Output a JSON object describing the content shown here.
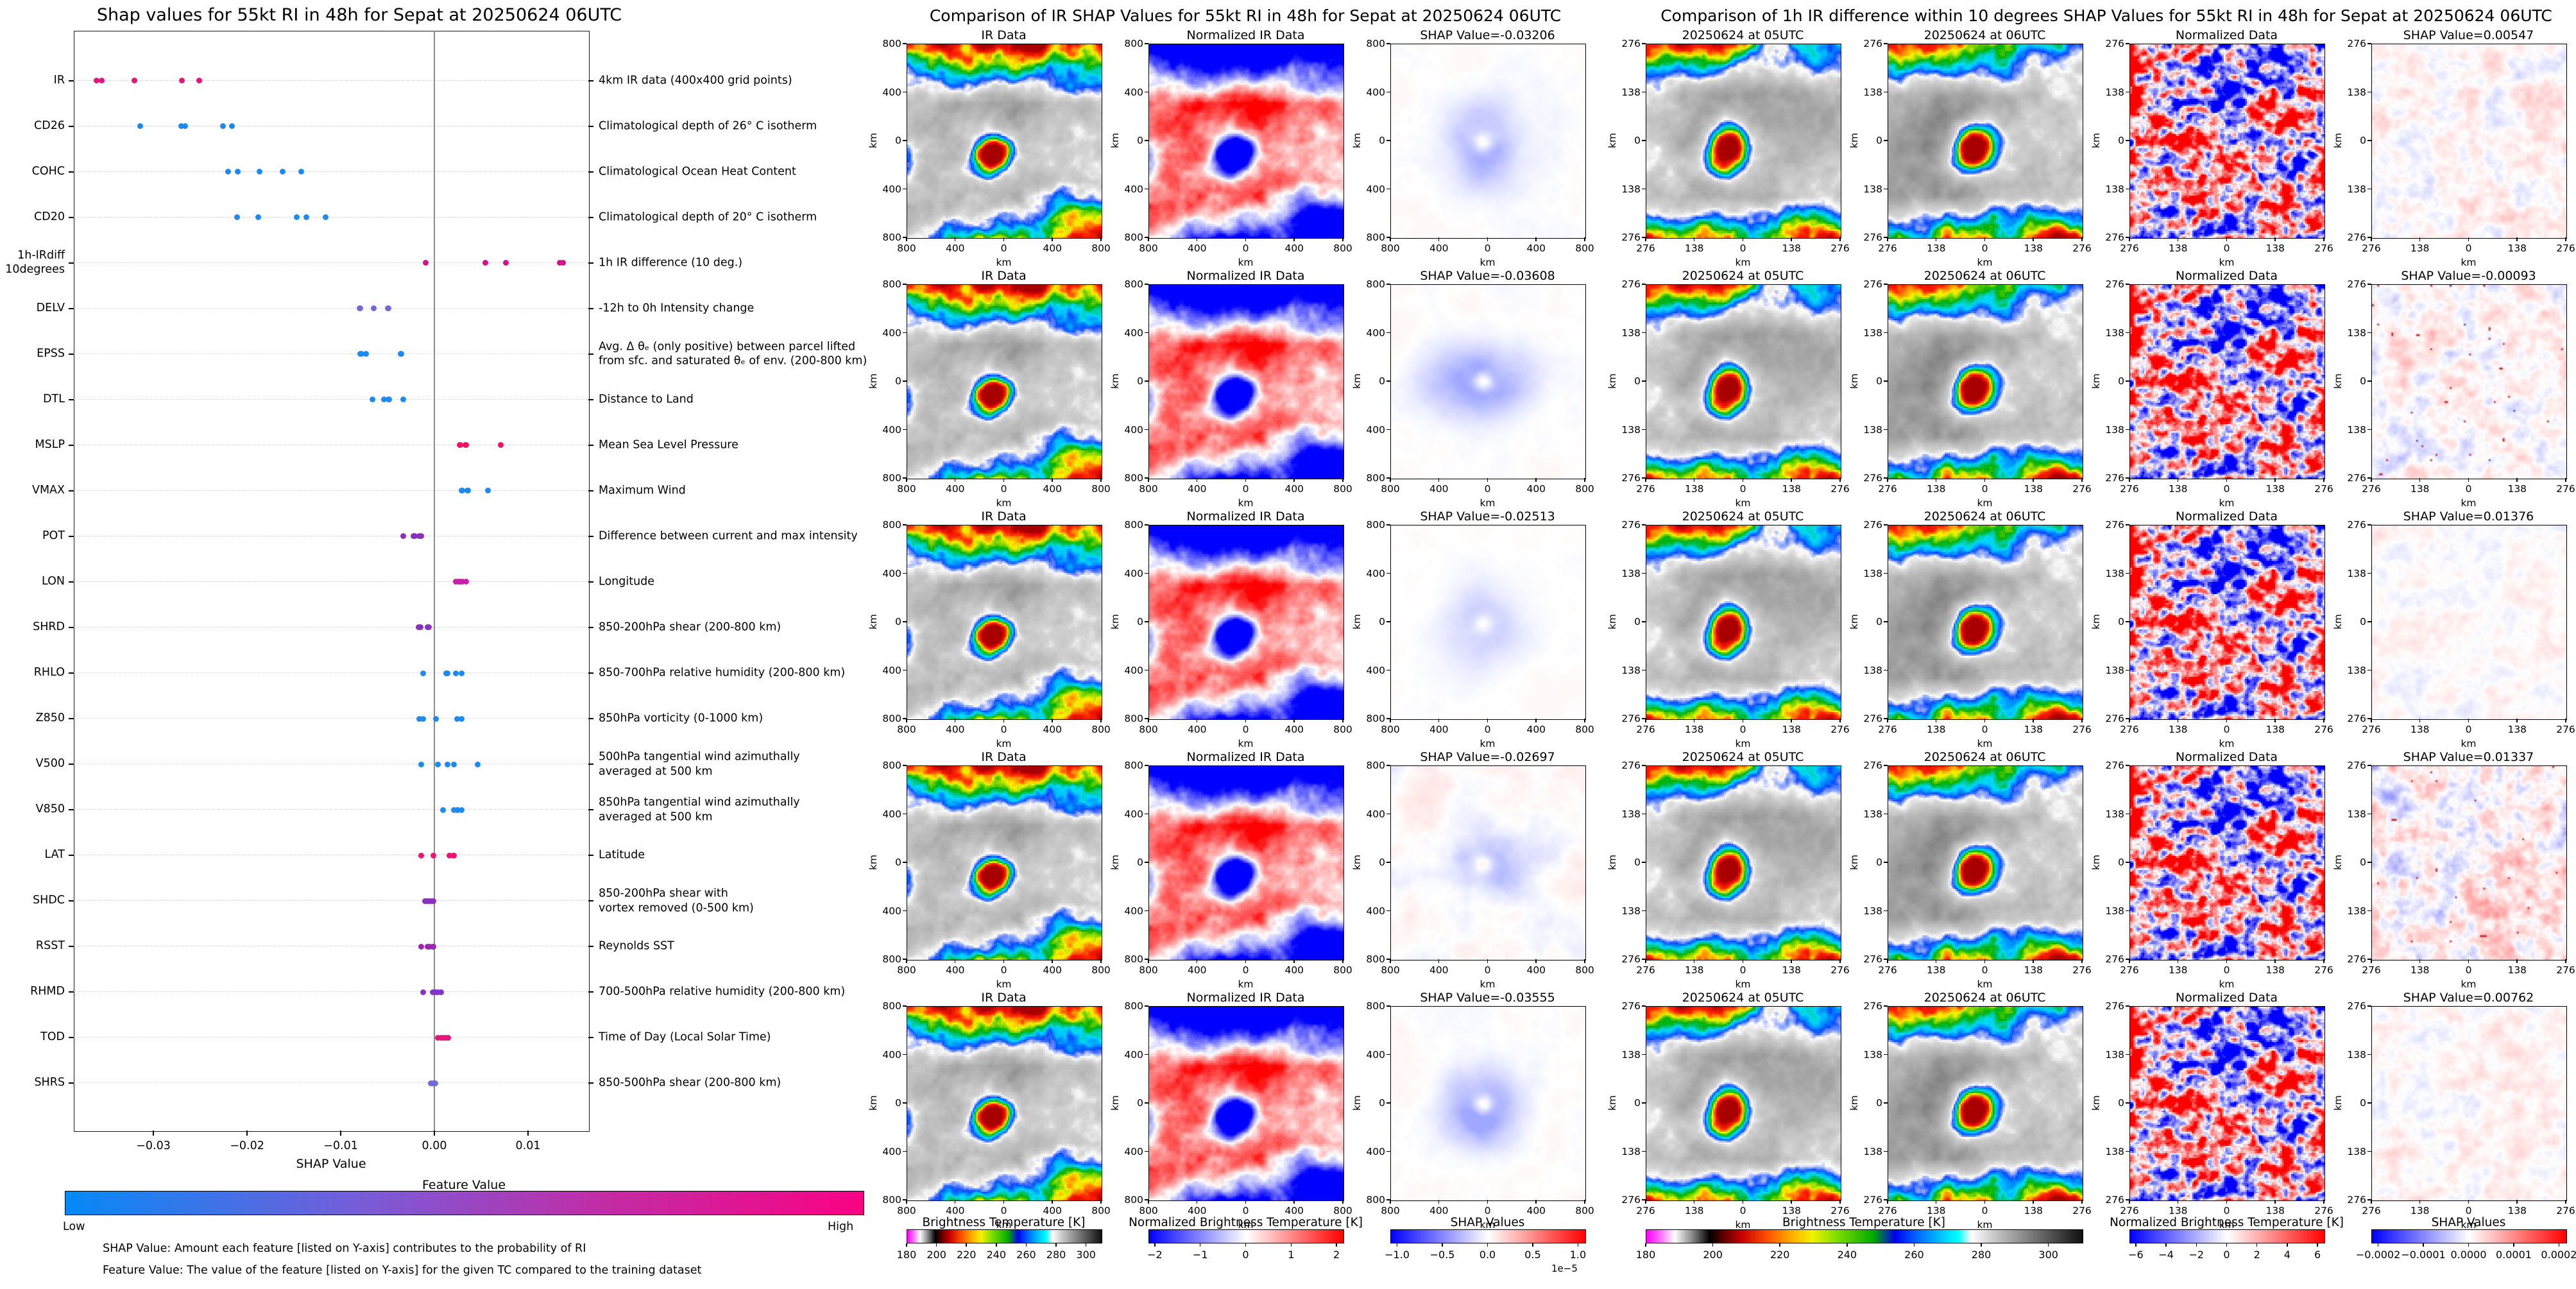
{
  "left_panel": {
    "title": "Shap values for 55kt RI in 48h for Sepat at 20250624 06UTC",
    "xlabel": "SHAP Value",
    "x_tick_labels": [
      "−0.03",
      "−0.02",
      "−0.01",
      "0.00",
      "0.01"
    ],
    "colorbar": {
      "title": "Feature Value",
      "low_label": "Low",
      "high_label": "High",
      "low_color": "#0589f8",
      "high_color": "#fa0283"
    },
    "footnote1": "SHAP Value: Amount each feature [listed on Y-axis] contributes to the probability of RI",
    "footnote2": "Feature Value: The value of the feature [listed on Y-axis] for the given TC compared to the training dataset",
    "features": [
      {
        "code": "IR",
        "desc": "4km IR data (400x400 grid points)"
      },
      {
        "code": "CD26",
        "desc": "Climatological depth of 26° C isotherm"
      },
      {
        "code": "COHC",
        "desc": "Climatological Ocean Heat Content"
      },
      {
        "code": "CD20",
        "desc": "Climatological depth of 20° C isotherm"
      },
      {
        "code": "1h-IRdiff\n10degrees",
        "desc": "1h IR difference (10 deg.)"
      },
      {
        "code": "DELV",
        "desc": "-12h to 0h Intensity change"
      },
      {
        "code": "EPSS",
        "desc": "Avg. Δ θₑ (only positive) between parcel lifted\nfrom sfc. and saturated θₑ of env. (200-800 km)"
      },
      {
        "code": "DTL",
        "desc": "Distance to Land"
      },
      {
        "code": "MSLP",
        "desc": "Mean Sea Level Pressure"
      },
      {
        "code": "VMAX",
        "desc": "Maximum Wind"
      },
      {
        "code": "POT",
        "desc": "Difference between current and max intensity"
      },
      {
        "code": "LON",
        "desc": "Longitude"
      },
      {
        "code": "SHRD",
        "desc": "850-200hPa shear (200-800 km)"
      },
      {
        "code": "RHLO",
        "desc": "850-700hPa relative humidity (200-800 km)"
      },
      {
        "code": "Z850",
        "desc": "850hPa vorticity (0-1000 km)"
      },
      {
        "code": "V500",
        "desc": "500hPa tangential wind azimuthally\naveraged at 500 km"
      },
      {
        "code": "V850",
        "desc": "850hPa tangential wind azimuthally\naveraged at 500 km"
      },
      {
        "code": "LAT",
        "desc": "Latitude"
      },
      {
        "code": "SHDC",
        "desc": "850-200hPa shear with\nvortex removed (0-500 km)"
      },
      {
        "code": "RSST",
        "desc": "Reynolds SST"
      },
      {
        "code": "RHMD",
        "desc": "700-500hPa relative humidity (200-800 km)"
      },
      {
        "code": "TOD",
        "desc": "Time of Day (Local Solar Time)"
      },
      {
        "code": "SHRS",
        "desc": "850-500hPa shear (200-800 km)"
      }
    ]
  },
  "middle_panel": {
    "title": "Comparison of IR SHAP Values for 55kt RI in 48h for Sepat at 20250624 06UTC",
    "col_titles": [
      "IR Data",
      "Normalized IR Data"
    ],
    "rows": [
      {
        "shap_label": "SHAP Value=-0.03206"
      },
      {
        "shap_label": "SHAP Value=-0.03608"
      },
      {
        "shap_label": "SHAP Value=-0.02513"
      },
      {
        "shap_label": "SHAP Value=-0.02697"
      },
      {
        "shap_label": "SHAP Value=-0.03555"
      }
    ],
    "axis_tick_labels": [
      "800",
      "400",
      "0",
      "400",
      "800"
    ],
    "axis_unit": "km",
    "colorbars": [
      {
        "title": "Brightness Temperature [K]",
        "ticks": [
          "180",
          "200",
          "220",
          "240",
          "260",
          "280",
          "300"
        ],
        "style": "grad-ir",
        "range": [
          180,
          310
        ],
        "values": [
          180,
          200,
          220,
          240,
          260,
          280,
          300
        ]
      },
      {
        "title": "Normalized Brightness Temperature [K]",
        "ticks": [
          "−2",
          "−1",
          "0",
          "1",
          "2"
        ],
        "style": "grad-bwr",
        "range": [
          -2.14,
          2.14
        ],
        "values": [
          -2,
          -1,
          0,
          1,
          2
        ]
      },
      {
        "title": "SHAP Values",
        "ticks": [
          "−1.0",
          "−0.5",
          "0.0",
          "0.5",
          "1.0"
        ],
        "style": "grad-bwr",
        "range": [
          -1.075,
          1.075
        ],
        "values": [
          -1,
          -0.5,
          0,
          0.5,
          1
        ],
        "exponent": "1e−5"
      }
    ]
  },
  "right_panel": {
    "title": "Comparison of 1h IR difference within 10 degrees SHAP Values for 55kt RI in 48h for Sepat at 20250624 06UTC",
    "col_titles": [
      "20250624 at 05UTC",
      "20250624 at 06UTC",
      "Normalized Data"
    ],
    "rows": [
      {
        "shap_label": "SHAP Value=0.00547"
      },
      {
        "shap_label": "SHAP Value=-0.00093"
      },
      {
        "shap_label": "SHAP Value=0.01376"
      },
      {
        "shap_label": "SHAP Value=0.01337"
      },
      {
        "shap_label": "SHAP Value=0.00762"
      }
    ],
    "axis_tick_labels": [
      "276",
      "138",
      "0",
      "138",
      "276"
    ],
    "axis_unit": "km",
    "colorbars": [
      {
        "title": "Brightness Temperature [K]",
        "ticks": [
          "180",
          "200",
          "220",
          "240",
          "260",
          "280",
          "300"
        ],
        "style": "grad-ir",
        "range": [
          180,
          310
        ],
        "values": [
          180,
          200,
          220,
          240,
          260,
          280,
          300
        ]
      },
      {
        "title": "Normalized Brightness Temperature [K]",
        "ticks": [
          "−6",
          "−4",
          "−2",
          "0",
          "2",
          "4",
          "6"
        ],
        "style": "grad-bwr",
        "range": [
          -6.42,
          6.42
        ],
        "values": [
          -6,
          -4,
          -2,
          0,
          2,
          4,
          6
        ]
      },
      {
        "title": "SHAP Values",
        "ticks": [
          "−0.0002",
          "−0.0001",
          "0.0000",
          "0.0001",
          "0.0002"
        ],
        "style": "grad-bwr",
        "range": [
          -0.000215,
          0.000215
        ],
        "values": [
          -0.0002,
          -0.0001,
          0,
          0.0001,
          0.0002
        ]
      }
    ]
  },
  "chart_data": [
    {
      "type": "scatter",
      "subtype": "shap-beeswarm",
      "title": "Shap values for 55kt RI in 48h for Sepat at 20250624 06UTC",
      "xlabel": "SHAP Value",
      "xlim": [
        -0.0385,
        0.01644
      ],
      "x_ticks": [
        -0.03,
        -0.02,
        -0.01,
        0.0,
        0.01
      ],
      "legend": "Feature Value colorbar: Low (blue) to High (pink)",
      "series": [
        {
          "name": "IR",
          "color": "#e0187c",
          "x": [
            -0.03608,
            -0.03555,
            -0.03206,
            -0.02697,
            -0.02513
          ]
        },
        {
          "name": "CD26",
          "color": "#1e8af0",
          "x": [
            -0.0314,
            -0.027,
            -0.0266,
            -0.0226,
            -0.0216
          ]
        },
        {
          "name": "COHC",
          "color": "#1e8af0",
          "x": [
            -0.022,
            -0.021,
            -0.0187,
            -0.0162,
            -0.0142
          ]
        },
        {
          "name": "CD20",
          "color": "#1e8af0",
          "x": [
            -0.0211,
            -0.0188,
            -0.0147,
            -0.0137,
            -0.0116
          ]
        },
        {
          "name": "1h-IRdiff 10degrees",
          "color": "#d2148c",
          "x": [
            -0.00093,
            0.00547,
            0.00762,
            0.01337,
            0.01376
          ]
        },
        {
          "name": "DELV",
          "color": "#6f6ad8",
          "x": [
            -0.008,
            -0.0079,
            -0.0065,
            -0.005,
            -0.0049
          ]
        },
        {
          "name": "EPSS",
          "color": "#1e8af0",
          "x": [
            -0.0079,
            -0.0078,
            -0.0073,
            -0.0036,
            -0.0035
          ]
        },
        {
          "name": "DTL",
          "color": "#1e8af0",
          "x": [
            -0.0066,
            -0.0054,
            -0.0049,
            -0.0048,
            -0.0033
          ]
        },
        {
          "name": "MSLP",
          "color": "#ee1460",
          "x": [
            0.0027,
            0.0028,
            0.0033,
            0.0034,
            0.0071
          ]
        },
        {
          "name": "VMAX",
          "color": "#1e8af0",
          "x": [
            0.0029,
            0.003,
            0.0035,
            0.0036,
            0.0057
          ]
        },
        {
          "name": "POT",
          "color": "#8a2fbe",
          "x": [
            -0.0033,
            -0.0022,
            -0.0021,
            -0.0016,
            -0.0014
          ]
        },
        {
          "name": "LON",
          "color": "#c521ab",
          "x": [
            0.0023,
            0.0026,
            0.0028,
            0.003,
            0.0034
          ]
        },
        {
          "name": "SHRD",
          "color": "#8a2fbe",
          "x": [
            -0.0017,
            -0.0016,
            -0.0015,
            -0.0007,
            -0.0006
          ]
        },
        {
          "name": "RHLO",
          "color": "#1e8af0",
          "x": [
            -0.0012,
            0.0013,
            0.0014,
            0.0023,
            0.0029
          ]
        },
        {
          "name": "Z850",
          "color": "#1e8af0",
          "x": [
            -0.0016,
            -0.0012,
            0.0002,
            0.0024,
            0.0029
          ]
        },
        {
          "name": "V500",
          "color": "#1e8af0",
          "x": [
            -0.0014,
            0.0004,
            0.0014,
            0.0021,
            0.0046
          ]
        },
        {
          "name": "V850",
          "color": "#1e8af0",
          "x": [
            0.0009,
            0.0021,
            0.0024,
            0.0025,
            0.0029
          ]
        },
        {
          "name": "LAT",
          "color": "#ee1470",
          "x": [
            -0.0014,
            -0.0001,
            0.0016,
            0.002,
            0.0021
          ]
        },
        {
          "name": "SHDC",
          "color": "#8a2fbe",
          "x": [
            -0.001,
            -0.0008,
            -0.0006,
            -0.0003,
            -0.0001
          ]
        },
        {
          "name": "RSST",
          "color": "#9c27b0",
          "x": [
            -0.0014,
            -0.0007,
            -0.0005,
            -0.0002,
            -0.0001
          ]
        },
        {
          "name": "RHMD",
          "color": "#8336c8",
          "x": [
            -0.0012,
            -0.0002,
            0.0001,
            0.0004,
            0.0007
          ]
        },
        {
          "name": "TOD",
          "color": "#e0187c",
          "x": [
            0.0004,
            0.0007,
            0.001,
            0.0012,
            0.0015
          ]
        },
        {
          "name": "SHRS",
          "color": "#6f6ad8",
          "x": [
            -0.0004,
            -0.0002,
            -0.0001,
            0.0,
            0.0001
          ]
        }
      ]
    },
    {
      "type": "heatmap",
      "title": "Comparison of IR SHAP Values for 55kt RI in 48h for Sepat at 20250624 06UTC",
      "columns": [
        "IR Data",
        "Normalized IR Data",
        "SHAP Value map"
      ],
      "row_shap_values": [
        -0.03206,
        -0.03608,
        -0.02513,
        -0.02697,
        -0.03555
      ],
      "axis_range_km": [
        -800,
        800
      ],
      "colorbar_ranges": {
        "brightness_temperature_K": [
          180,
          300
        ],
        "normalized_brightness_temperature_K": [
          -2,
          2
        ],
        "shap_values": [
          -1e-05,
          1e-05
        ]
      }
    },
    {
      "type": "heatmap",
      "title": "Comparison of 1h IR difference within 10 degrees SHAP Values for 55kt RI in 48h for Sepat at 20250624 06UTC",
      "columns": [
        "20250624 at 05UTC",
        "20250624 at 06UTC",
        "Normalized Data",
        "SHAP Value map"
      ],
      "row_shap_values": [
        0.00547,
        -0.00093,
        0.01376,
        0.01337,
        0.00762
      ],
      "axis_range_km": [
        -276,
        276
      ],
      "colorbar_ranges": {
        "brightness_temperature_K": [
          180,
          300
        ],
        "normalized_brightness_temperature_K": [
          -6,
          6
        ],
        "shap_values": [
          -0.0002,
          0.0002
        ]
      }
    }
  ]
}
